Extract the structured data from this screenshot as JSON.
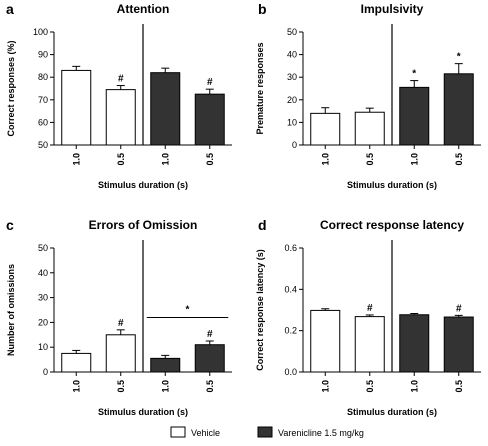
{
  "colors": {
    "vehicle": "#ffffff",
    "varenicline": "#333333",
    "axis": "#000000"
  },
  "legend": {
    "items": [
      "Vehicle",
      "Varenicline 1.5 mg/kg"
    ],
    "position": "bottom-center"
  },
  "chart_data": [
    {
      "type": "bar",
      "letter": "a",
      "title": "Attention",
      "ylabel": "Correct responses (%)",
      "xlabel": "Stimulus duration (s)",
      "ylim": [
        50,
        100
      ],
      "yticks": [
        50,
        60,
        70,
        80,
        90,
        100
      ],
      "categories": [
        "1.0",
        "0.5",
        "1.0",
        "0.5"
      ],
      "groups": [
        "vehicle",
        "vehicle",
        "varenicline",
        "varenicline"
      ],
      "values": [
        83,
        74.5,
        82,
        72.5
      ],
      "errors": [
        1.8,
        1.8,
        2,
        2.2
      ],
      "annotations": [
        "",
        "#",
        "",
        "#"
      ],
      "bracket": null
    },
    {
      "type": "bar",
      "letter": "b",
      "title": "Impulsivity",
      "ylabel": "Premature responses",
      "xlabel": "Stimulus duration (s)",
      "ylim": [
        0,
        50
      ],
      "yticks": [
        0,
        10,
        20,
        30,
        40,
        50
      ],
      "categories": [
        "1.0",
        "0.5",
        "1.0",
        "0.5"
      ],
      "groups": [
        "vehicle",
        "vehicle",
        "varenicline",
        "varenicline"
      ],
      "values": [
        14,
        14.5,
        25.5,
        31.5
      ],
      "errors": [
        2.5,
        1.8,
        3,
        4.5
      ],
      "annotations": [
        "",
        "",
        "*",
        "*"
      ],
      "bracket": null
    },
    {
      "type": "bar",
      "letter": "c",
      "title": "Errors of Omission",
      "ylabel": "Number of omissions",
      "xlabel": "Stimulus duration (s)",
      "ylim": [
        0,
        50
      ],
      "yticks": [
        0,
        10,
        20,
        30,
        40,
        50
      ],
      "categories": [
        "1.0",
        "0.5",
        "1.0",
        "0.5"
      ],
      "groups": [
        "vehicle",
        "vehicle",
        "varenicline",
        "varenicline"
      ],
      "values": [
        7.5,
        15,
        5.5,
        11
      ],
      "errors": [
        1.2,
        2,
        1.2,
        1.5
      ],
      "annotations": [
        "",
        "#",
        "",
        "#"
      ],
      "bracket": {
        "from": 2,
        "to": 3,
        "value": 22,
        "label": "*"
      }
    },
    {
      "type": "bar",
      "letter": "d",
      "title": "Correct response latency",
      "ylabel": "Correct response latency (s)",
      "xlabel": "Stimulus duration (s)",
      "ylim": [
        0,
        0.6
      ],
      "yticks": [
        0.0,
        0.2,
        0.4,
        0.6
      ],
      "ytick_labels": [
        "0.0",
        "0.2",
        "0.4",
        "0.6"
      ],
      "categories": [
        "1.0",
        "0.5",
        "1.0",
        "0.5"
      ],
      "groups": [
        "vehicle",
        "vehicle",
        "varenicline",
        "varenicline"
      ],
      "values": [
        0.298,
        0.268,
        0.277,
        0.266
      ],
      "errors": [
        0.008,
        0.008,
        0.006,
        0.008
      ],
      "annotations": [
        "",
        "#",
        "",
        "#"
      ],
      "bracket": null
    }
  ]
}
